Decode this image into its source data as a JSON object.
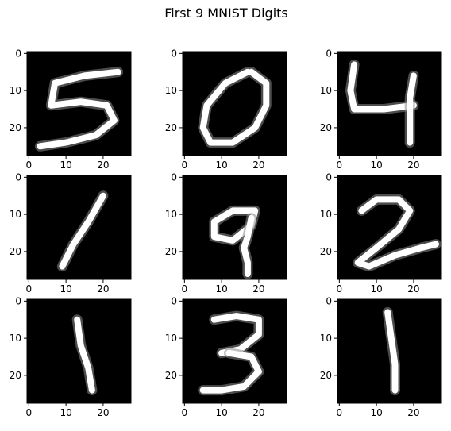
{
  "chart_data": {
    "type": "heatmap",
    "title": "First 9 MNIST Digits",
    "colormap": "gray",
    "background": "#000000",
    "foreground": "#ffffff",
    "grid": false,
    "layout": "3x3",
    "xlim": [
      -0.5,
      27.5
    ],
    "ylim": [
      27.5,
      -0.5
    ],
    "xticks": [
      "0",
      "10",
      "20"
    ],
    "yticks": [
      "0",
      "10",
      "20"
    ],
    "xtick_values": [
      0,
      10,
      20
    ],
    "ytick_values": [
      0,
      10,
      20
    ],
    "panels": [
      {
        "digit": "5",
        "strokes": [
          [
            [
              24,
              5
            ],
            [
              15,
              6
            ],
            [
              7,
              8
            ],
            [
              6,
              14
            ],
            [
              14,
              13
            ],
            [
              21,
              14
            ],
            [
              23,
              18
            ],
            [
              18,
              22
            ],
            [
              10,
              24
            ],
            [
              3,
              25
            ]
          ]
        ]
      },
      {
        "digit": "0",
        "strokes": [
          [
            [
              17,
              5
            ],
            [
              11,
              8
            ],
            [
              6,
              14
            ],
            [
              5,
              20
            ],
            [
              7,
              24
            ],
            [
              13,
              24
            ],
            [
              19,
              20
            ],
            [
              22,
              14
            ],
            [
              22,
              8
            ],
            [
              18,
              5
            ]
          ]
        ]
      },
      {
        "digit": "4",
        "strokes": [
          [
            [
              4,
              3
            ],
            [
              3,
              10
            ],
            [
              4,
              15
            ],
            [
              12,
              15
            ],
            [
              20,
              14
            ]
          ],
          [
            [
              20,
              6
            ],
            [
              19,
              12
            ],
            [
              19,
              19
            ],
            [
              19,
              24
            ]
          ]
        ]
      },
      {
        "digit": "1",
        "strokes": [
          [
            [
              20,
              5
            ],
            [
              16,
              12
            ],
            [
              12,
              18
            ],
            [
              9,
              24
            ]
          ]
        ]
      },
      {
        "digit": "9",
        "strokes": [
          [
            [
              19,
              9
            ],
            [
              13,
              9
            ],
            [
              8,
              12
            ],
            [
              8,
              16
            ],
            [
              13,
              17
            ],
            [
              18,
              13
            ],
            [
              19,
              9
            ]
          ],
          [
            [
              18,
              11
            ],
            [
              17,
              16
            ],
            [
              16,
              19
            ],
            [
              17,
              23
            ],
            [
              17,
              26
            ]
          ]
        ]
      },
      {
        "digit": "2",
        "strokes": [
          [
            [
              6,
              9
            ],
            [
              10,
              6
            ],
            [
              16,
              6
            ],
            [
              19,
              9
            ],
            [
              16,
              14
            ],
            [
              10,
              19
            ],
            [
              5,
              23
            ],
            [
              8,
              24
            ],
            [
              15,
              21
            ],
            [
              22,
              19
            ],
            [
              26,
              18
            ]
          ]
        ]
      },
      {
        "digit": "1",
        "strokes": [
          [
            [
              13,
              5
            ],
            [
              14,
              12
            ],
            [
              16,
              18
            ],
            [
              17,
              24
            ]
          ]
        ]
      },
      {
        "digit": "3",
        "strokes": [
          [
            [
              8,
              5
            ],
            [
              14,
              4
            ],
            [
              20,
              5
            ],
            [
              20,
              9
            ],
            [
              15,
              13
            ],
            [
              10,
              14
            ]
          ],
          [
            [
              12,
              14
            ],
            [
              18,
              15
            ],
            [
              20,
              19
            ],
            [
              16,
              23
            ],
            [
              10,
              24
            ],
            [
              5,
              24
            ]
          ]
        ]
      },
      {
        "digit": "1",
        "strokes": [
          [
            [
              13,
              3
            ],
            [
              14,
              10
            ],
            [
              15,
              17
            ],
            [
              15,
              24
            ]
          ]
        ]
      }
    ]
  }
}
